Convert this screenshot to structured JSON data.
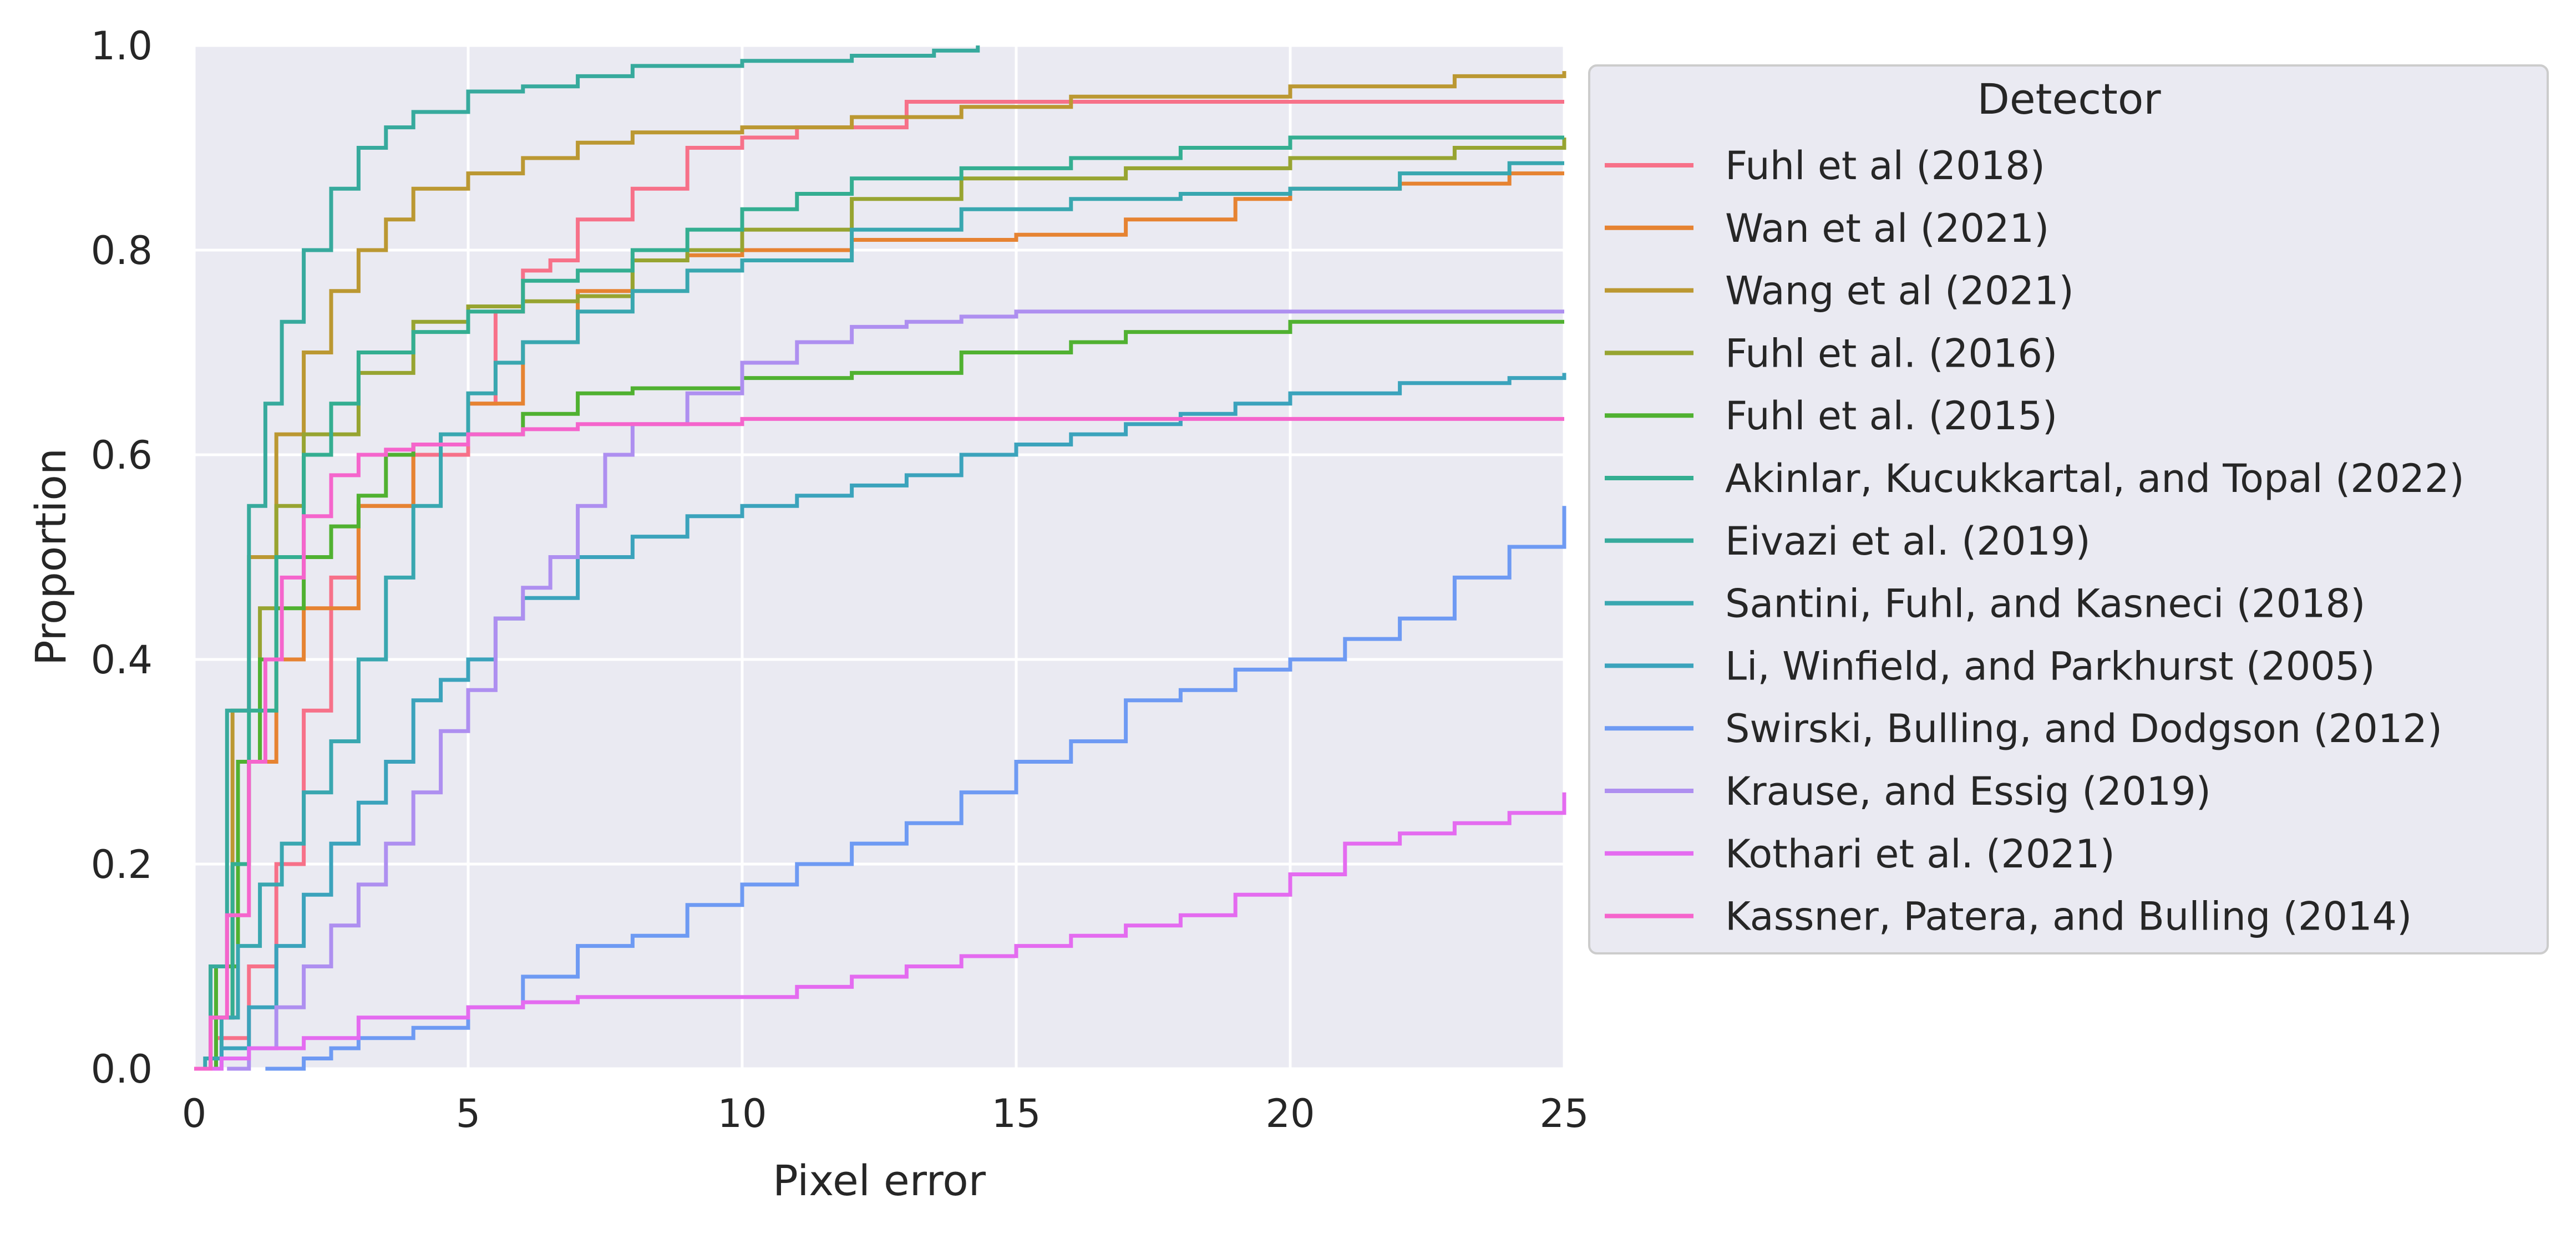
{
  "chart_data": {
    "type": "line",
    "xlabel": "Pixel error",
    "ylabel": "Proportion",
    "xlim": [
      0,
      25
    ],
    "ylim": [
      0,
      1
    ],
    "xticks": [
      0,
      5,
      10,
      15,
      20,
      25
    ],
    "xtick_labels": [
      "0",
      "5",
      "10",
      "15",
      "20",
      "25"
    ],
    "yticks": [
      0,
      0.2,
      0.4,
      0.6,
      0.8,
      1.0
    ],
    "ytick_labels": [
      "0.0",
      "0.2",
      "0.4",
      "0.6",
      "0.8",
      "1.0"
    ],
    "grid": true,
    "background": "#eaeaf2",
    "grid_color": "#ffffff",
    "legend": {
      "title": "Detector",
      "position": "outside-right"
    },
    "series": [
      {
        "name": "Fuhl et al (2018)",
        "color": "#f77189",
        "points": [
          [
            0,
            0
          ],
          [
            0.4,
            0.03
          ],
          [
            1,
            0.1
          ],
          [
            1.5,
            0.2
          ],
          [
            2,
            0.35
          ],
          [
            2.5,
            0.48
          ],
          [
            3,
            0.55
          ],
          [
            4,
            0.6
          ],
          [
            5,
            0.65
          ],
          [
            5.5,
            0.74
          ],
          [
            6,
            0.78
          ],
          [
            6.5,
            0.79
          ],
          [
            7,
            0.83
          ],
          [
            8,
            0.86
          ],
          [
            9,
            0.9
          ],
          [
            10,
            0.91
          ],
          [
            11,
            0.92
          ],
          [
            13,
            0.945
          ],
          [
            25,
            0.945
          ]
        ]
      },
      {
        "name": "Wan et al (2021)",
        "color": "#e68332",
        "points": [
          [
            0,
            0
          ],
          [
            0.3,
            0.05
          ],
          [
            0.7,
            0.2
          ],
          [
            1,
            0.3
          ],
          [
            1.5,
            0.4
          ],
          [
            2,
            0.45
          ],
          [
            3,
            0.55
          ],
          [
            4,
            0.61
          ],
          [
            5,
            0.65
          ],
          [
            6,
            0.71
          ],
          [
            7,
            0.76
          ],
          [
            8,
            0.79
          ],
          [
            9,
            0.795
          ],
          [
            10,
            0.8
          ],
          [
            12,
            0.81
          ],
          [
            15,
            0.815
          ],
          [
            17,
            0.83
          ],
          [
            19,
            0.85
          ],
          [
            20,
            0.86
          ],
          [
            22,
            0.865
          ],
          [
            24,
            0.875
          ],
          [
            25,
            0.875
          ]
        ]
      },
      {
        "name": "Wang et al (2021)",
        "color": "#bb9832",
        "points": [
          [
            0,
            0
          ],
          [
            0.3,
            0.1
          ],
          [
            0.7,
            0.35
          ],
          [
            1,
            0.5
          ],
          [
            1.5,
            0.62
          ],
          [
            2,
            0.7
          ],
          [
            2.5,
            0.76
          ],
          [
            3,
            0.8
          ],
          [
            3.5,
            0.83
          ],
          [
            4,
            0.86
          ],
          [
            5,
            0.875
          ],
          [
            6,
            0.89
          ],
          [
            7,
            0.905
          ],
          [
            8,
            0.915
          ],
          [
            10,
            0.92
          ],
          [
            12,
            0.93
          ],
          [
            14,
            0.94
          ],
          [
            16,
            0.95
          ],
          [
            20,
            0.96
          ],
          [
            23,
            0.97
          ],
          [
            25,
            0.975
          ]
        ]
      },
      {
        "name": "Fuhl et al. (2016)",
        "color": "#97a431",
        "points": [
          [
            0,
            0
          ],
          [
            0.4,
            0.1
          ],
          [
            0.8,
            0.3
          ],
          [
            1.2,
            0.45
          ],
          [
            1.5,
            0.55
          ],
          [
            2,
            0.62
          ],
          [
            3,
            0.68
          ],
          [
            4,
            0.73
          ],
          [
            5,
            0.745
          ],
          [
            6,
            0.75
          ],
          [
            7,
            0.755
          ],
          [
            8,
            0.79
          ],
          [
            9,
            0.8
          ],
          [
            10,
            0.82
          ],
          [
            12,
            0.85
          ],
          [
            14,
            0.87
          ],
          [
            17,
            0.88
          ],
          [
            20,
            0.89
          ],
          [
            23,
            0.9
          ],
          [
            25,
            0.91
          ]
        ]
      },
      {
        "name": "Fuhl et al. (2015)",
        "color": "#50b131",
        "points": [
          [
            0,
            0
          ],
          [
            0.4,
            0.1
          ],
          [
            0.8,
            0.3
          ],
          [
            1.2,
            0.4
          ],
          [
            1.5,
            0.45
          ],
          [
            2,
            0.5
          ],
          [
            2.5,
            0.53
          ],
          [
            3,
            0.56
          ],
          [
            3.5,
            0.6
          ],
          [
            4,
            0.61
          ],
          [
            5,
            0.62
          ],
          [
            6,
            0.64
          ],
          [
            7,
            0.66
          ],
          [
            8,
            0.665
          ],
          [
            10,
            0.675
          ],
          [
            12,
            0.68
          ],
          [
            14,
            0.7
          ],
          [
            16,
            0.71
          ],
          [
            17,
            0.72
          ],
          [
            20,
            0.73
          ],
          [
            25,
            0.73
          ]
        ]
      },
      {
        "name": "Akinlar, Kucukkartal, and Topal (2022)",
        "color": "#34ae91",
        "points": [
          [
            0,
            0
          ],
          [
            0.3,
            0.05
          ],
          [
            0.7,
            0.2
          ],
          [
            1,
            0.35
          ],
          [
            1.5,
            0.5
          ],
          [
            2,
            0.6
          ],
          [
            2.5,
            0.65
          ],
          [
            3,
            0.7
          ],
          [
            4,
            0.72
          ],
          [
            5,
            0.74
          ],
          [
            6,
            0.77
          ],
          [
            7,
            0.78
          ],
          [
            8,
            0.8
          ],
          [
            9,
            0.82
          ],
          [
            10,
            0.84
          ],
          [
            11,
            0.855
          ],
          [
            12,
            0.87
          ],
          [
            14,
            0.88
          ],
          [
            16,
            0.89
          ],
          [
            18,
            0.9
          ],
          [
            20,
            0.91
          ],
          [
            25,
            0.91
          ]
        ]
      },
      {
        "name": "Eivazi et al. (2019)",
        "color": "#37aa9d",
        "points": [
          [
            0,
            0
          ],
          [
            0.3,
            0.1
          ],
          [
            0.6,
            0.35
          ],
          [
            1,
            0.55
          ],
          [
            1.3,
            0.65
          ],
          [
            1.6,
            0.73
          ],
          [
            2,
            0.8
          ],
          [
            2.5,
            0.86
          ],
          [
            3,
            0.9
          ],
          [
            3.5,
            0.92
          ],
          [
            4,
            0.935
          ],
          [
            5,
            0.955
          ],
          [
            6,
            0.96
          ],
          [
            7,
            0.97
          ],
          [
            8,
            0.98
          ],
          [
            10,
            0.985
          ],
          [
            12,
            0.99
          ],
          [
            13.5,
            0.995
          ],
          [
            14.3,
            1.0
          ]
        ]
      },
      {
        "name": "Santini, Fuhl, and Kasneci (2018)",
        "color": "#39a7b0",
        "points": [
          [
            0,
            0
          ],
          [
            0.2,
            0.01
          ],
          [
            0.5,
            0.05
          ],
          [
            0.8,
            0.12
          ],
          [
            1.2,
            0.18
          ],
          [
            1.6,
            0.22
          ],
          [
            2,
            0.27
          ],
          [
            2.5,
            0.32
          ],
          [
            3,
            0.4
          ],
          [
            3.5,
            0.48
          ],
          [
            4,
            0.55
          ],
          [
            4.5,
            0.62
          ],
          [
            5,
            0.66
          ],
          [
            5.5,
            0.69
          ],
          [
            6,
            0.71
          ],
          [
            7,
            0.74
          ],
          [
            8,
            0.76
          ],
          [
            9,
            0.78
          ],
          [
            10,
            0.79
          ],
          [
            12,
            0.82
          ],
          [
            14,
            0.84
          ],
          [
            16,
            0.85
          ],
          [
            18,
            0.855
          ],
          [
            20,
            0.86
          ],
          [
            22,
            0.875
          ],
          [
            24,
            0.885
          ],
          [
            25,
            0.885
          ]
        ]
      },
      {
        "name": "Li, Winfield, and Parkhurst (2005)",
        "color": "#3ba3bc",
        "points": [
          [
            0,
            0
          ],
          [
            0.5,
            0.02
          ],
          [
            1,
            0.06
          ],
          [
            1.5,
            0.12
          ],
          [
            2,
            0.17
          ],
          [
            2.5,
            0.22
          ],
          [
            3,
            0.26
          ],
          [
            3.5,
            0.3
          ],
          [
            4,
            0.36
          ],
          [
            4.5,
            0.38
          ],
          [
            5,
            0.4
          ],
          [
            5.5,
            0.44
          ],
          [
            6,
            0.46
          ],
          [
            7,
            0.5
          ],
          [
            8,
            0.52
          ],
          [
            9,
            0.54
          ],
          [
            10,
            0.55
          ],
          [
            11,
            0.56
          ],
          [
            12,
            0.57
          ],
          [
            13,
            0.58
          ],
          [
            14,
            0.6
          ],
          [
            15,
            0.61
          ],
          [
            16,
            0.62
          ],
          [
            17,
            0.63
          ],
          [
            18,
            0.64
          ],
          [
            19,
            0.65
          ],
          [
            20,
            0.66
          ],
          [
            22,
            0.67
          ],
          [
            24,
            0.675
          ],
          [
            25,
            0.68
          ]
        ]
      },
      {
        "name": "Swirski, Bulling, and Dodgson (2012)",
        "color": "#6e9af3",
        "points": [
          [
            1.3,
            0
          ],
          [
            2,
            0.01
          ],
          [
            2.5,
            0.02
          ],
          [
            3,
            0.03
          ],
          [
            4,
            0.04
          ],
          [
            5,
            0.06
          ],
          [
            6,
            0.09
          ],
          [
            7,
            0.12
          ],
          [
            8,
            0.13
          ],
          [
            9,
            0.16
          ],
          [
            10,
            0.18
          ],
          [
            11,
            0.2
          ],
          [
            12,
            0.22
          ],
          [
            13,
            0.24
          ],
          [
            14,
            0.27
          ],
          [
            15,
            0.3
          ],
          [
            16,
            0.32
          ],
          [
            17,
            0.36
          ],
          [
            18,
            0.37
          ],
          [
            19,
            0.39
          ],
          [
            20,
            0.4
          ],
          [
            21,
            0.42
          ],
          [
            22,
            0.44
          ],
          [
            23,
            0.48
          ],
          [
            24,
            0.51
          ],
          [
            25,
            0.55
          ]
        ]
      },
      {
        "name": "Krause, and Essig (2019)",
        "color": "#ae8ff0",
        "points": [
          [
            0.6,
            0
          ],
          [
            1,
            0.02
          ],
          [
            1.5,
            0.06
          ],
          [
            2,
            0.1
          ],
          [
            2.5,
            0.14
          ],
          [
            3,
            0.18
          ],
          [
            3.5,
            0.22
          ],
          [
            4,
            0.27
          ],
          [
            4.5,
            0.33
          ],
          [
            5,
            0.37
          ],
          [
            5.5,
            0.44
          ],
          [
            6,
            0.47
          ],
          [
            6.5,
            0.5
          ],
          [
            7,
            0.55
          ],
          [
            7.5,
            0.6
          ],
          [
            8,
            0.63
          ],
          [
            9,
            0.66
          ],
          [
            10,
            0.69
          ],
          [
            11,
            0.71
          ],
          [
            12,
            0.725
          ],
          [
            13,
            0.73
          ],
          [
            14,
            0.735
          ],
          [
            15,
            0.74
          ],
          [
            25,
            0.74
          ]
        ]
      },
      {
        "name": "Kothari et al. (2021)",
        "color": "#e46bf0",
        "points": [
          [
            0,
            0
          ],
          [
            0.5,
            0.01
          ],
          [
            1,
            0.02
          ],
          [
            2,
            0.03
          ],
          [
            3,
            0.05
          ],
          [
            4,
            0.05
          ],
          [
            5,
            0.06
          ],
          [
            6,
            0.065
          ],
          [
            7,
            0.07
          ],
          [
            10,
            0.07
          ],
          [
            11,
            0.08
          ],
          [
            12,
            0.09
          ],
          [
            13,
            0.1
          ],
          [
            14,
            0.11
          ],
          [
            15,
            0.12
          ],
          [
            16,
            0.13
          ],
          [
            17,
            0.14
          ],
          [
            18,
            0.15
          ],
          [
            19,
            0.17
          ],
          [
            20,
            0.19
          ],
          [
            21,
            0.22
          ],
          [
            22,
            0.23
          ],
          [
            23,
            0.24
          ],
          [
            24,
            0.25
          ],
          [
            25,
            0.27
          ]
        ]
      },
      {
        "name": "Kassner, Patera, and Bulling (2014)",
        "color": "#f565cc",
        "points": [
          [
            0,
            0
          ],
          [
            0.3,
            0.05
          ],
          [
            0.6,
            0.15
          ],
          [
            1,
            0.3
          ],
          [
            1.3,
            0.4
          ],
          [
            1.6,
            0.48
          ],
          [
            2,
            0.54
          ],
          [
            2.5,
            0.58
          ],
          [
            3,
            0.6
          ],
          [
            3.5,
            0.605
          ],
          [
            4,
            0.61
          ],
          [
            5,
            0.62
          ],
          [
            6,
            0.625
          ],
          [
            7,
            0.63
          ],
          [
            10,
            0.635
          ],
          [
            25,
            0.635
          ]
        ]
      }
    ]
  }
}
